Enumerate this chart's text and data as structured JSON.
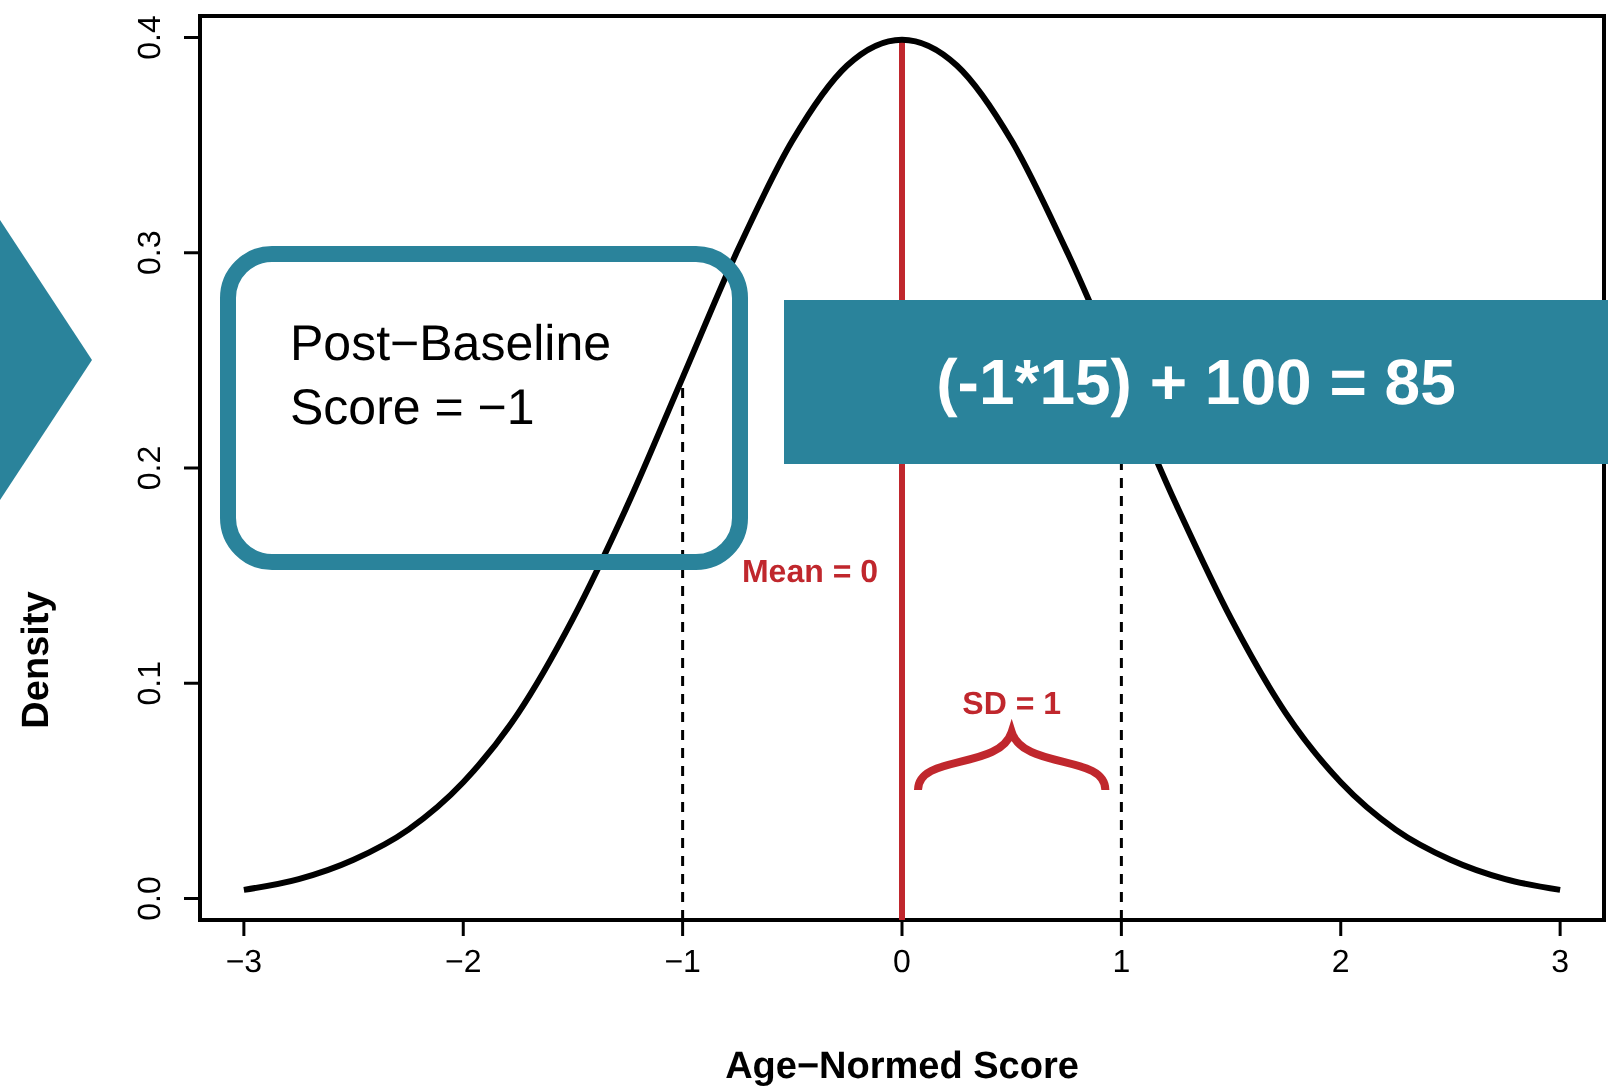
{
  "chart_data": {
    "type": "line",
    "xlabel": "Age−Normed Score",
    "ylabel": "Density",
    "x": [
      -3,
      -2.75,
      -2.5,
      -2.25,
      -2,
      -1.75,
      -1.5,
      -1.25,
      -1,
      -0.75,
      -0.5,
      -0.25,
      0,
      0.25,
      0.5,
      0.75,
      1,
      1.25,
      1.5,
      1.75,
      2,
      2.25,
      2.5,
      2.75,
      3
    ],
    "series": [
      {
        "color": "#000000",
        "values": [
          0.004,
          0.009,
          0.018,
          0.032,
          0.054,
          0.086,
          0.13,
          0.183,
          0.242,
          0.301,
          0.352,
          0.387,
          0.399,
          0.387,
          0.352,
          0.301,
          null,
          0.183,
          0.13,
          0.086,
          0.054,
          0.032,
          0.018,
          0.009,
          0.004
        ]
      }
    ],
    "xlim": [
      -3.2,
      3.2
    ],
    "ylim": [
      -0.01,
      0.41
    ],
    "xticks": [
      -3,
      -2,
      -1,
      0,
      1,
      2,
      3
    ],
    "yticks": [
      {
        "value": 0,
        "label": "0.0"
      },
      0.1,
      0.2,
      0.3,
      0.4
    ],
    "grid": false,
    "marker": "none",
    "line_style": "solid",
    "ref_lines": [
      {
        "axis": "x",
        "value": 0,
        "label": "Mean = 0",
        "color": "#c0272d",
        "line_style": "solid"
      },
      {
        "axis": "x",
        "value": -1,
        "color": "#000000",
        "line_style": "dashed"
      },
      {
        "axis": "x",
        "value": 1,
        "color": "#000000",
        "line_style": "dashed"
      }
    ],
    "annotations": [
      "Post−Baseline Score = −1",
      "(-1*15) + 100 = 85",
      "SD = 1"
    ]
  }
}
